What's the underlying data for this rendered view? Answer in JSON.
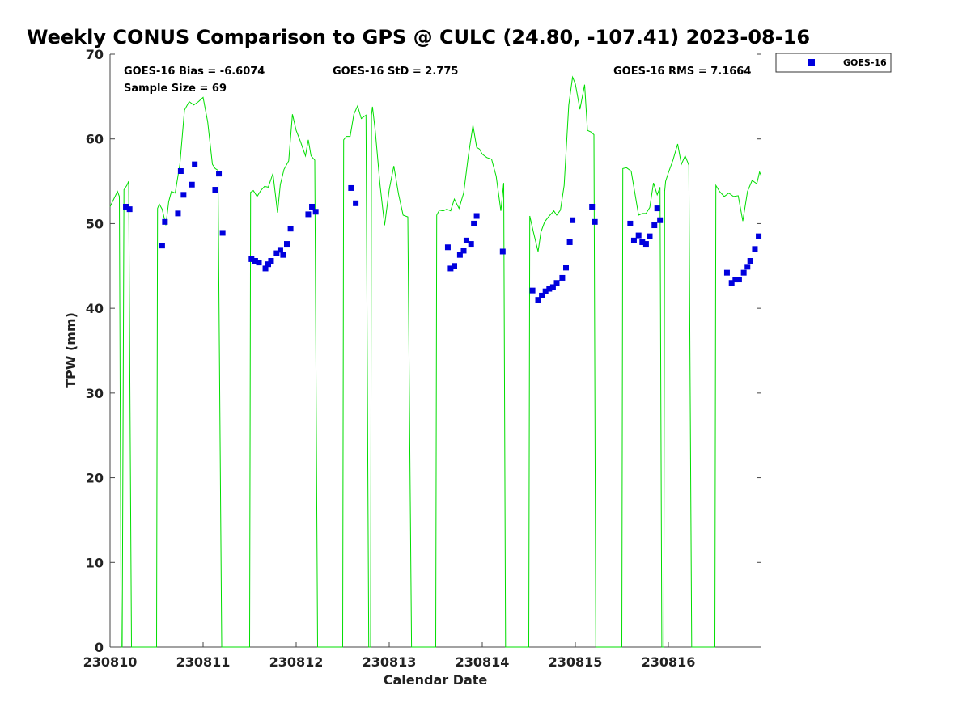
{
  "chart_data": {
    "type": "scatter",
    "title": "Weekly CONUS Comparison to GPS @ CULC (24.80, -107.41) 2023-08-16",
    "xlabel": "Calendar Date",
    "ylabel": "TPW (mm)",
    "xlim": [
      230810,
      230817
    ],
    "ylim": [
      0,
      70
    ],
    "xticks": [
      230810,
      230811,
      230812,
      230813,
      230814,
      230815,
      230816
    ],
    "yticks": [
      0,
      10,
      20,
      30,
      40,
      50,
      60,
      70
    ],
    "grid": false,
    "legend_position": "top-right (outside axes)",
    "stats": {
      "bias": "GOES-16 Bias = -6.6074",
      "std": "GOES-16 StD = 2.775",
      "rms": "GOES-16 RMS = 7.1664",
      "sample": "Sample Size = 69"
    },
    "series": [
      {
        "name": "GOES-16",
        "kind": "markers",
        "color": "#0000dd",
        "x": [
          230810.17,
          230810.21,
          230810.56,
          230810.59,
          230810.73,
          230810.76,
          230810.79,
          230810.88,
          230810.91,
          230811.13,
          230811.17,
          230811.21,
          230811.52,
          230811.56,
          230811.6,
          230811.67,
          230811.7,
          230811.73,
          230811.79,
          230811.83,
          230811.86,
          230811.9,
          230811.94,
          230812.13,
          230812.17,
          230812.21,
          230812.59,
          230812.64,
          230813.63,
          230813.66,
          230813.7,
          230813.76,
          230813.8,
          230813.83,
          230813.88,
          230813.91,
          230813.94,
          230814.22,
          230814.54,
          230814.6,
          230814.64,
          230814.68,
          230814.72,
          230814.76,
          230814.8,
          230814.86,
          230814.9,
          230814.94,
          230814.97,
          230815.18,
          230815.21,
          230815.59,
          230815.63,
          230815.68,
          230815.72,
          230815.76,
          230815.8,
          230815.85,
          230815.88,
          230815.91,
          230816.63,
          230816.68,
          230816.72,
          230816.76,
          230816.81,
          230816.85,
          230816.88,
          230816.93,
          230816.97
        ],
        "y": [
          52.0,
          51.7,
          47.4,
          50.2,
          51.2,
          56.2,
          53.4,
          54.6,
          57.0,
          54.0,
          55.9,
          48.9,
          45.8,
          45.6,
          45.4,
          44.7,
          45.2,
          45.6,
          46.5,
          46.9,
          46.3,
          47.6,
          49.4,
          51.1,
          52.0,
          51.4,
          54.2,
          52.4,
          47.2,
          44.7,
          45.0,
          46.3,
          46.8,
          48.0,
          47.6,
          50.0,
          50.9,
          46.7,
          42.1,
          41.0,
          41.5,
          42.0,
          42.3,
          42.5,
          43.0,
          43.6,
          44.8,
          47.8,
          50.4,
          52.0,
          50.2,
          50.0,
          48.0,
          48.6,
          47.8,
          47.6,
          48.5,
          49.8,
          51.8,
          50.4,
          44.2,
          43.0,
          43.4,
          43.4,
          44.2,
          44.9,
          45.6,
          47.0,
          48.5
        ]
      },
      {
        "kind": "line",
        "color": "#00dd00",
        "x": [
          230810.0,
          230810.08,
          230810.1,
          230810.12,
          230810.13,
          230810.15,
          230810.18,
          230810.2,
          230810.23,
          230810.24,
          230810.25,
          230810.5,
          230810.51,
          230810.53,
          230810.56,
          230810.6,
          230810.63,
          230810.66,
          230810.7,
          230810.75,
          230810.8,
          230810.85,
          230810.9,
          230810.95,
          230811.0,
          230811.05,
          230811.1,
          230811.13,
          230811.16,
          230811.2,
          230811.23,
          230811.25,
          230811.26,
          230811.5,
          230811.51,
          230811.54,
          230811.58,
          230811.62,
          230811.66,
          230811.7,
          230811.75,
          230811.8,
          230811.83,
          230811.87,
          230811.92,
          230811.96,
          230812.0,
          230812.05,
          230812.1,
          230812.13,
          230812.16,
          230812.2,
          230812.23,
          230812.25,
          230812.26,
          230812.5,
          230812.51,
          230812.54,
          230812.58,
          230812.62,
          230812.66,
          230812.7,
          230812.75,
          230812.78,
          230812.8,
          230812.81,
          230812.82,
          230812.85,
          230812.9,
          230812.95,
          230813.0,
          230813.05,
          230813.1,
          230813.15,
          230813.2,
          230813.24,
          230813.25,
          230813.5,
          230813.51,
          230813.54,
          230813.58,
          230813.62,
          230813.66,
          230813.7,
          230813.75,
          230813.8,
          230813.85,
          230813.9,
          230813.94,
          230813.97,
          230814.0,
          230814.05,
          230814.1,
          230814.15,
          230814.2,
          230814.23,
          230814.25,
          230814.26,
          230814.5,
          230814.51,
          230814.55,
          230814.6,
          230814.63,
          230814.67,
          230814.72,
          230814.77,
          230814.8,
          230814.84,
          230814.88,
          230814.93,
          230814.97,
          230815.0,
          230815.05,
          230815.1,
          230815.13,
          230815.17,
          230815.2,
          230815.22,
          230815.25,
          230815.26,
          230815.5,
          230815.51,
          230815.55,
          230815.6,
          230815.64,
          230815.68,
          230815.72,
          230815.76,
          230815.8,
          230815.84,
          230815.88,
          230815.91,
          230815.93,
          230815.95,
          230815.96,
          230815.97,
          230816.0,
          230816.05,
          230816.1,
          230816.14,
          230816.18,
          230816.22,
          230816.25,
          230816.26,
          230816.5,
          230816.51,
          230816.55,
          230816.6,
          230816.65,
          230816.7,
          230816.75,
          230816.8,
          230816.85,
          230816.9,
          230816.95,
          230816.98,
          230817.0
        ],
        "y": [
          52.0,
          53.8,
          53.2,
          0.0,
          0.0,
          54.0,
          54.5,
          55.0,
          0.0,
          0.0,
          0.0,
          0.0,
          51.8,
          52.3,
          51.7,
          49.8,
          52.6,
          53.8,
          53.6,
          57.0,
          63.4,
          64.4,
          64.0,
          64.4,
          64.9,
          62.0,
          57.0,
          56.5,
          56.3,
          0.0,
          0.0,
          0.0,
          0.0,
          0.0,
          53.7,
          53.9,
          53.2,
          53.9,
          54.4,
          54.3,
          55.9,
          51.3,
          54.6,
          56.4,
          57.4,
          62.9,
          61.0,
          59.6,
          58.0,
          59.9,
          58.0,
          57.5,
          0.0,
          0.0,
          0.0,
          0.0,
          59.9,
          60.3,
          60.3,
          62.9,
          63.9,
          62.4,
          62.8,
          0.0,
          0.0,
          62.8,
          63.8,
          60.9,
          54.7,
          49.8,
          54.0,
          56.8,
          53.5,
          51.0,
          50.8,
          0.0,
          0.0,
          0.0,
          51.0,
          51.6,
          51.5,
          51.7,
          51.5,
          52.9,
          51.8,
          53.6,
          58.0,
          61.6,
          59.0,
          58.8,
          58.2,
          57.8,
          57.6,
          55.6,
          51.5,
          54.8,
          0.0,
          0.0,
          0.0,
          50.9,
          49.0,
          46.7,
          49.0,
          50.2,
          50.9,
          51.5,
          51.0,
          51.6,
          54.5,
          64.0,
          67.3,
          66.5,
          63.5,
          66.4,
          61.0,
          60.8,
          60.5,
          0.0,
          0.0,
          0.0,
          0.0,
          56.5,
          56.6,
          56.2,
          53.6,
          51.0,
          51.2,
          51.2,
          51.9,
          54.8,
          53.4,
          54.3,
          0.0,
          0.0,
          53.8,
          55.0,
          56.0,
          57.5,
          59.4,
          57.0,
          58.0,
          56.9,
          0.0,
          0.0,
          0.0,
          54.5,
          53.8,
          53.2,
          53.6,
          53.2,
          53.3,
          50.3,
          53.8,
          55.1,
          54.7,
          56.1,
          55.6
        ]
      }
    ]
  }
}
